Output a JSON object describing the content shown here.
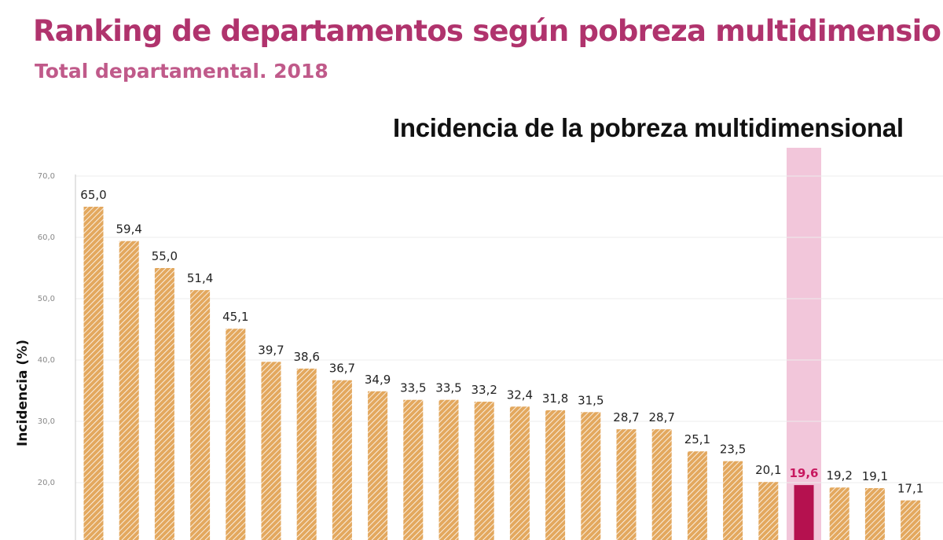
{
  "title": "Ranking de departamentos según pobreza multidimensional",
  "subtitle": "Total departamental. 2018",
  "colors": {
    "title": "#b0336d",
    "bar": "#e3a85e",
    "bar_stripe": "#ffffff",
    "highlight_bar": "#b5114f",
    "highlight_band": "#f2c6da",
    "highlight_label": "#c8185f"
  },
  "chart_data": {
    "type": "bar",
    "title": "Incidencia de la pobreza multidimensional",
    "ylabel": "Incidencia (%)",
    "xlabel": "",
    "ylim": [
      10,
      70
    ],
    "yticks": [
      "20,0",
      "30,0",
      "40,0",
      "50,0",
      "60,0",
      "70,0"
    ],
    "grid": true,
    "values": [
      65.0,
      59.4,
      55.0,
      51.4,
      45.1,
      39.7,
      38.6,
      36.7,
      34.9,
      33.5,
      33.5,
      33.2,
      32.4,
      31.8,
      31.5,
      28.7,
      28.7,
      25.1,
      23.5,
      20.1,
      19.6,
      19.2,
      19.1,
      17.1
    ],
    "labels": [
      "65,0",
      "59,4",
      "55,0",
      "51,4",
      "45,1",
      "39,7",
      "38,6",
      "36,7",
      "34,9",
      "33,5",
      "33,5",
      "33,2",
      "32,4",
      "31,8",
      "31,5",
      "28,7",
      "28,7",
      "25,1",
      "23,5",
      "20,1",
      "19,6",
      "19,2",
      "19,1",
      "17,1"
    ],
    "highlight_index": 20
  }
}
